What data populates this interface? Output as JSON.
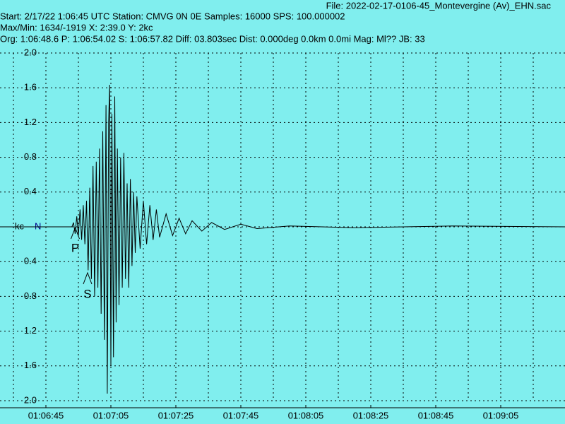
{
  "chart_data": {
    "type": "line",
    "header": [
      "File: 2022-02-17-0106-45_Montevergine (Av)_EHN.sac",
      "Start: 2/17/22  1:06:45 UTC Station: CMVG 0N 0E Samples: 16000  SPS: 100.000002",
      "Max/Min: 1634/-1919 X: 2:39.0 Y: 2kc",
      "Org: 1:06:48.6 P: 1:06:54.02 S: 1:06:57.82 Diff: 03.803sec Dist: 0.000deg 0.0km 0.0mi  Mag: Ml?? JB: 33"
    ],
    "channel_label": "N",
    "x": [
      391,
      413,
      413.5,
      414,
      414.5,
      415,
      415.5,
      416,
      416.5,
      417,
      417.5,
      418,
      418.5,
      419,
      419.5,
      420,
      420.5,
      421,
      421.5,
      422,
      422.5,
      423,
      423.5,
      423.9,
      424.3,
      424.6,
      425,
      425.3,
      425.8,
      426.2,
      426.6,
      427,
      427.5,
      428,
      428.5,
      429,
      429.5,
      430,
      430.5,
      431,
      431.5,
      432,
      432.5,
      433,
      434,
      435,
      436,
      437,
      438,
      439,
      440,
      442,
      444,
      446,
      448,
      450,
      453,
      456,
      460,
      465,
      470,
      480,
      500,
      530,
      565
    ],
    "series": [
      {
        "color": "#000000",
        "values": [
          0,
          0,
          0.05,
          -0.08,
          0.12,
          -0.1,
          0.2,
          -0.15,
          0.25,
          -0.2,
          0.3,
          -0.5,
          0.45,
          -0.6,
          0.7,
          -0.8,
          0.75,
          -0.7,
          0.9,
          -1.0,
          1.1,
          -1.3,
          1.4,
          -1.919,
          1.2,
          1.634,
          -1.6,
          1.3,
          -1.5,
          1.5,
          -1.1,
          0.9,
          -0.9,
          0.8,
          -0.7,
          0.85,
          -0.6,
          0.5,
          -0.7,
          0.55,
          -0.45,
          0.4,
          -0.3,
          0.35,
          -0.25,
          0.3,
          -0.2,
          0.25,
          -0.15,
          0.2,
          -0.12,
          0.15,
          -0.1,
          0.1,
          -0.08,
          0.07,
          -0.05,
          0.05,
          -0.03,
          0.03,
          -0.02,
          0.01,
          -0.01,
          0.01,
          0
        ]
      }
    ],
    "annotations": [
      {
        "text": "P",
        "x": 414.02
      },
      {
        "text": "S",
        "x": 417.82
      }
    ],
    "xlim": [
      390.87,
      564.78
    ],
    "xticks": [
      {
        "value": 405,
        "label": "01:06:45"
      },
      {
        "value": 425,
        "label": "01:07:05"
      },
      {
        "value": 445,
        "label": "01:07:25"
      },
      {
        "value": 465,
        "label": "01:07:45"
      },
      {
        "value": 485,
        "label": "01:08:05"
      },
      {
        "value": 505,
        "label": "01:08:25"
      },
      {
        "value": 525,
        "label": "01:08:45"
      },
      {
        "value": 545,
        "label": "01:09:05"
      }
    ],
    "xgrid": [
      395,
      405,
      415,
      425,
      435,
      445,
      455,
      465,
      475,
      485,
      495,
      505,
      515,
      525,
      535,
      545,
      555
    ],
    "ylim": [
      -2,
      2
    ],
    "yticks": [
      {
        "value": 2,
        "label": "2.0"
      },
      1.6,
      1.2,
      0.8,
      0.4,
      {
        "value": 0,
        "label": "kc"
      },
      {
        "value": -0.4,
        "label": "0.4"
      },
      {
        "value": -0.8,
        "label": "0.8"
      },
      {
        "value": -1.2,
        "label": "1.2"
      },
      {
        "value": -1.6,
        "label": "1.6"
      },
      {
        "value": -2,
        "label": "2.0"
      }
    ],
    "grid": true,
    "background": "#80eeee"
  }
}
